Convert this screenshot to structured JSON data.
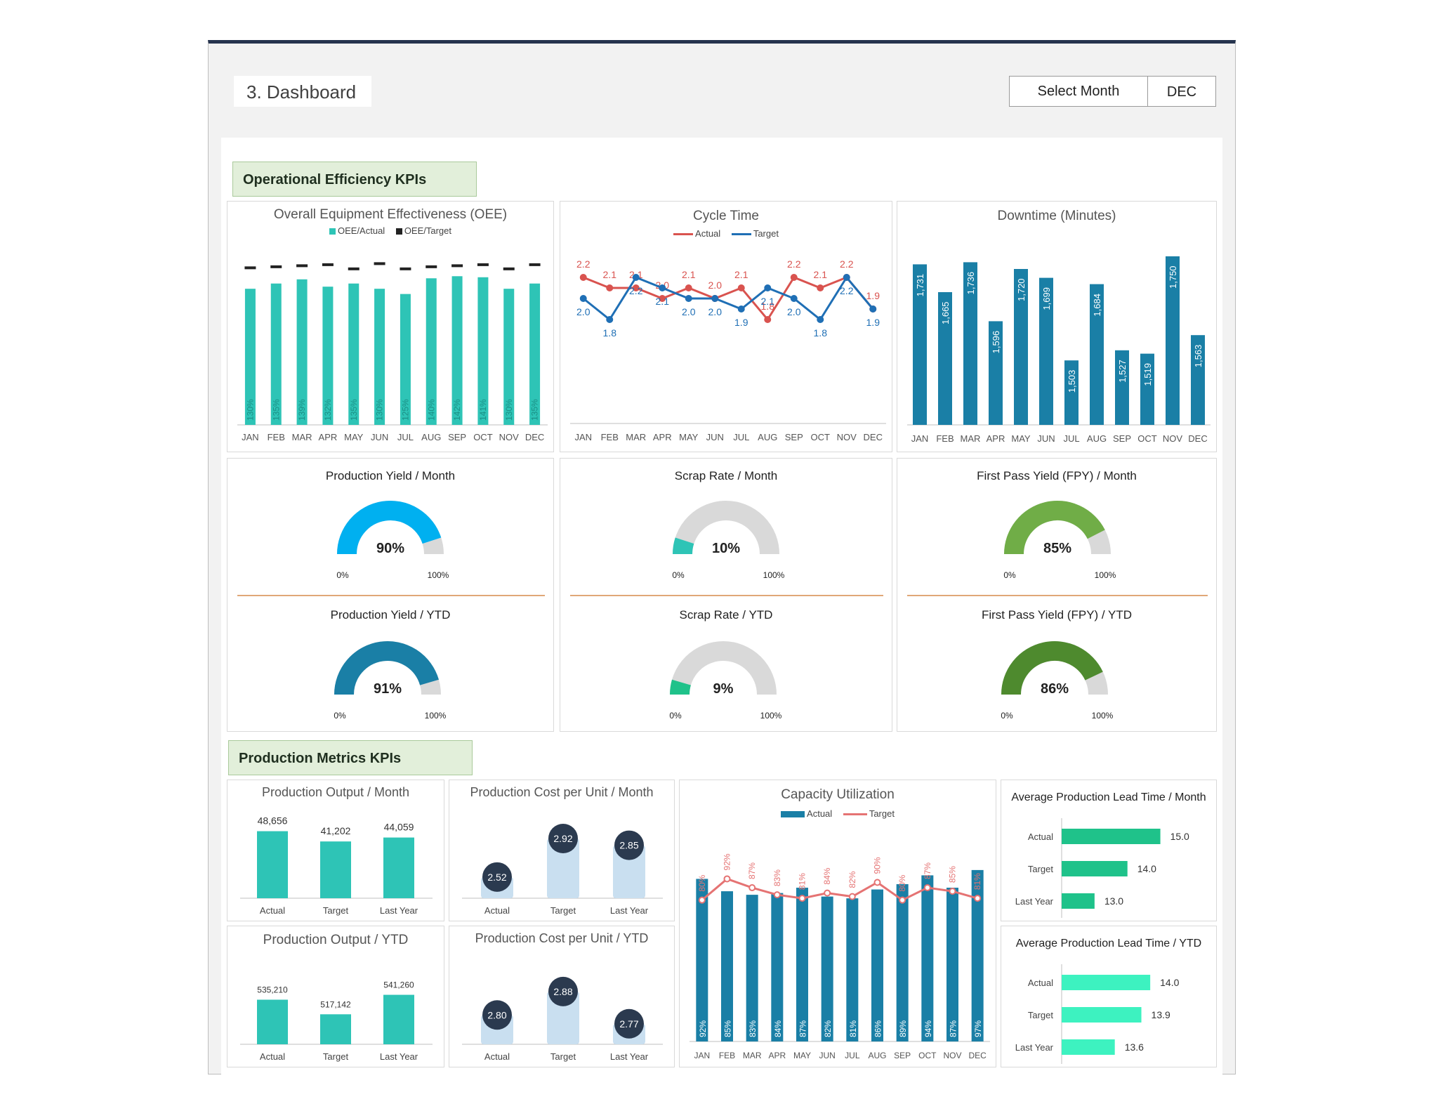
{
  "header": {
    "title": "3. Dashboard",
    "select_label": "Select Month",
    "selected_month": "DEC"
  },
  "colors": {
    "teal": "#2ec4b6",
    "dark_blue": "#1a7fa6",
    "red": "#d9534f",
    "line_blue": "#1f6fb5",
    "light_blue": "#00b0f0",
    "gauge_grey": "#d9d9d9",
    "green": "#70ad47",
    "dark_green": "#4e8a2e",
    "cost_bar": "#c9dff0",
    "bubble": "#2b3a4f"
  },
  "sections": {
    "operational": "Operational Efficiency KPIs",
    "production": "Production Metrics KPIs"
  },
  "months": [
    "JAN",
    "FEB",
    "MAR",
    "APR",
    "MAY",
    "JUN",
    "JUL",
    "AUG",
    "SEP",
    "OCT",
    "NOV",
    "DEC"
  ],
  "gauge_scale": {
    "min": "0%",
    "max": "100%"
  },
  "chart_data": [
    {
      "id": "oee",
      "type": "bar",
      "title": "Overall Equipment Effectiveness (OEE)",
      "legend": [
        "OEE/Actual",
        "OEE/Target"
      ],
      "categories": [
        "JAN",
        "FEB",
        "MAR",
        "APR",
        "MAY",
        "JUN",
        "JUL",
        "AUG",
        "SEP",
        "OCT",
        "NOV",
        "DEC"
      ],
      "series": [
        {
          "name": "OEE/Actual",
          "values": [
            130,
            135,
            139,
            132,
            135,
            130,
            125,
            140,
            142,
            141,
            130,
            135
          ],
          "labels": [
            "130%",
            "135%",
            "139%",
            "132%",
            "135%",
            "130%",
            "125%",
            "140%",
            "142%",
            "141%",
            "130%",
            "135%"
          ]
        },
        {
          "name": "OEE/Target",
          "values": [
            150,
            151,
            152,
            153,
            149,
            154,
            149,
            151,
            152,
            153,
            149,
            153
          ]
        }
      ],
      "ylim": [
        0,
        165
      ]
    },
    {
      "id": "cycle",
      "type": "line",
      "title": "Cycle Time",
      "legend": [
        "Actual",
        "Target"
      ],
      "categories": [
        "JAN",
        "FEB",
        "MAR",
        "APR",
        "MAY",
        "JUN",
        "JUL",
        "AUG",
        "SEP",
        "OCT",
        "NOV",
        "DEC"
      ],
      "series": [
        {
          "name": "Actual",
          "values": [
            2.2,
            2.1,
            2.1,
            2.0,
            2.1,
            2.0,
            2.1,
            1.8,
            2.2,
            2.1,
            2.2,
            1.9
          ],
          "labels": [
            "2.2",
            "2.1",
            "2.1",
            "2.0",
            "2.1",
            "2.0",
            "2.1",
            "1.8",
            "2.2",
            "2.1",
            "2.2",
            "1.9"
          ]
        },
        {
          "name": "Target",
          "values": [
            2.0,
            1.8,
            2.2,
            2.1,
            2.0,
            2.0,
            1.9,
            2.1,
            2.0,
            1.8,
            2.2,
            1.9
          ],
          "labels": [
            "2.0",
            "1.8",
            "2.2",
            "2.1",
            "2.0",
            "2.0",
            "1.9",
            "2.1",
            "2.0",
            "1.8",
            "2.2",
            "1.9"
          ]
        }
      ],
      "ylim": [
        1.4,
        2.6
      ]
    },
    {
      "id": "downtime",
      "type": "bar",
      "title": "Downtime (Minutes)",
      "categories": [
        "JAN",
        "FEB",
        "MAR",
        "APR",
        "MAY",
        "JUN",
        "JUL",
        "AUG",
        "SEP",
        "OCT",
        "NOV",
        "DEC"
      ],
      "values": [
        1731,
        1665,
        1736,
        1596,
        1720,
        1699,
        1503,
        1684,
        1527,
        1519,
        1750,
        1563
      ],
      "labels": [
        "1,731",
        "1,665",
        "1,736",
        "1,596",
        "1,720",
        "1,699",
        "1,503",
        "1,684",
        "1,527",
        "1,519",
        "1,750",
        "1,563"
      ],
      "ylim": [
        1350,
        1780
      ]
    },
    {
      "id": "gauge_yield_month",
      "type": "gauge",
      "title": "Production Yield / Month",
      "value": 90,
      "label": "90%"
    },
    {
      "id": "gauge_scrap_month",
      "type": "gauge",
      "title": "Scrap Rate / Month",
      "value": 10,
      "label": "10%"
    },
    {
      "id": "gauge_fpy_month",
      "type": "gauge",
      "title": "First Pass Yield (FPY) / Month",
      "value": 85,
      "label": "85%"
    },
    {
      "id": "gauge_yield_ytd",
      "type": "gauge",
      "title": "Production Yield / YTD",
      "value": 91,
      "label": "91%"
    },
    {
      "id": "gauge_scrap_ytd",
      "type": "gauge",
      "title": "Scrap Rate / YTD",
      "value": 9,
      "label": "9%"
    },
    {
      "id": "gauge_fpy_ytd",
      "type": "gauge",
      "title": "First Pass Yield (FPY) / YTD",
      "value": 86,
      "label": "86%"
    },
    {
      "id": "output_month",
      "type": "bar",
      "title": "Production Output / Month",
      "categories": [
        "Actual",
        "Target",
        "Last Year"
      ],
      "values": [
        48656,
        41202,
        44059
      ],
      "labels": [
        "48,656",
        "41,202",
        "44,059"
      ],
      "ylim": [
        0,
        52000
      ]
    },
    {
      "id": "output_ytd",
      "type": "bar",
      "title": "Production Output / YTD",
      "categories": [
        "Actual",
        "Target",
        "Last Year"
      ],
      "values": [
        535210,
        517142,
        541260
      ],
      "labels": [
        "535,210",
        "517,142",
        "541,260"
      ],
      "ylim": [
        480000,
        560000
      ]
    },
    {
      "id": "cost_month",
      "type": "bar",
      "title": "Production Cost per Unit / Month",
      "categories": [
        "Actual",
        "Target",
        "Last Year"
      ],
      "values": [
        2.52,
        2.92,
        2.85
      ],
      "labels": [
        "2.52",
        "2.92",
        "2.85"
      ],
      "ylim": [
        2.3,
        3.0
      ]
    },
    {
      "id": "cost_ytd",
      "type": "bar",
      "title": "Production Cost per Unit / YTD",
      "categories": [
        "Actual",
        "Target",
        "Last Year"
      ],
      "values": [
        2.8,
        2.88,
        2.77
      ],
      "labels": [
        "2.80",
        "2.88",
        "2.77"
      ],
      "ylim": [
        2.7,
        2.93
      ]
    },
    {
      "id": "capacity",
      "type": "bar",
      "title": "Capacity Utilization",
      "legend": [
        "Actual",
        "Target"
      ],
      "categories": [
        "JAN",
        "FEB",
        "MAR",
        "APR",
        "MAY",
        "JUN",
        "JUL",
        "AUG",
        "SEP",
        "OCT",
        "NOV",
        "DEC"
      ],
      "series": [
        {
          "name": "Actual",
          "values": [
            92,
            85,
            83,
            84,
            87,
            82,
            81,
            86,
            89,
            94,
            87,
            97
          ],
          "labels": [
            "92%",
            "85%",
            "83%",
            "84%",
            "87%",
            "82%",
            "81%",
            "86%",
            "89%",
            "94%",
            "87%",
            "97%"
          ]
        },
        {
          "name": "Target",
          "values": [
            80,
            92,
            87,
            83,
            81,
            84,
            82,
            90,
            80,
            87,
            85,
            81
          ],
          "labels": [
            "80%",
            "92%",
            "87%",
            "83%",
            "81%",
            "84%",
            "82%",
            "90%",
            "80%",
            "87%",
            "85%",
            "81%"
          ]
        }
      ],
      "ylim": [
        0,
        120
      ]
    },
    {
      "id": "lead_month",
      "type": "bar",
      "title": "Average Production Lead Time / Month",
      "categories": [
        "Actual",
        "Target",
        "Last Year"
      ],
      "values": [
        15.0,
        14.0,
        13.0
      ],
      "labels": [
        "15.0",
        "14.0",
        "13.0"
      ],
      "xlim": [
        12,
        15.5
      ]
    },
    {
      "id": "lead_ytd",
      "type": "bar",
      "title": "Average Production Lead Time / YTD",
      "categories": [
        "Actual",
        "Target",
        "Last Year"
      ],
      "values": [
        14.0,
        13.9,
        13.6
      ],
      "labels": [
        "14.0",
        "13.9",
        "13.6"
      ],
      "xlim": [
        13,
        14.3
      ]
    }
  ]
}
